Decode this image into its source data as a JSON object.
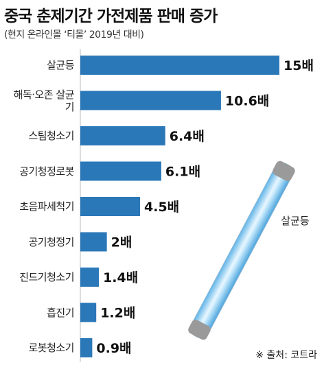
{
  "chart_data": {
    "type": "bar",
    "orientation": "horizontal",
    "title": "중국 춘제기간 가전제품 판매 증가",
    "subtitle": "(현지 온라인몰 ‘티몰’ 2019년  대비)",
    "categories": [
      "살균등",
      "해독·오존 살균기",
      "스팀청소기",
      "공기청정로봇",
      "초음파세척기",
      "공기청정기",
      "진드기청소기",
      "흡진기",
      "로봇청소기"
    ],
    "values": [
      15,
      10.6,
      6.4,
      6.1,
      4.5,
      2,
      1.4,
      1.2,
      0.9
    ],
    "value_labels": [
      "15배",
      "10.6배",
      "6.4배",
      "6.1배",
      "4.5배",
      "2배",
      "1.4배",
      "1.2배",
      "0.9배"
    ],
    "color": "#2b78b8",
    "xlim": [
      0,
      15
    ],
    "annotation": "살균등",
    "source": "※ 출처: 코트라"
  }
}
